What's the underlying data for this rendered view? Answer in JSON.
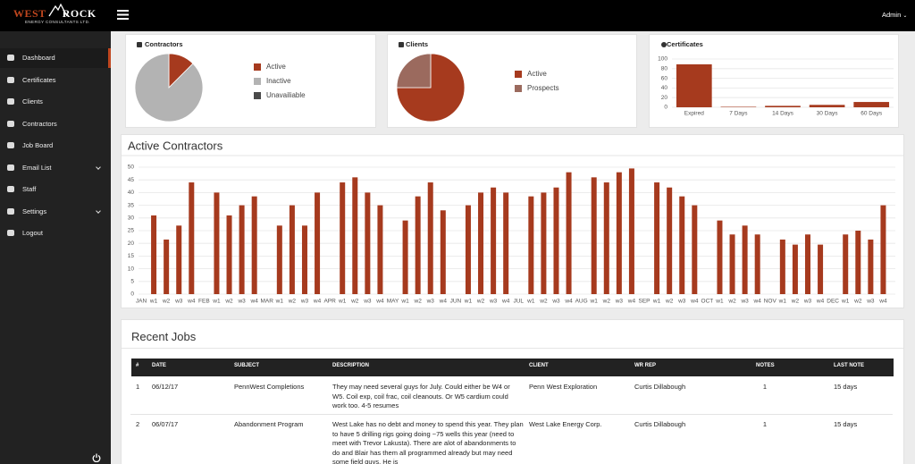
{
  "header": {
    "brand_west": "WEST",
    "brand_rock": "ROCK",
    "brand_tagline": "ENERGY CONSULTANTS LTD.",
    "user": "Admin"
  },
  "sidebar": {
    "items": [
      "Dashboard",
      "Certificates",
      "Clients",
      "Contractors",
      "Job Board",
      "Email List",
      "Staff",
      "Settings",
      "Logout"
    ]
  },
  "chart_data": [
    {
      "type": "pie",
      "title": "Contractors",
      "categories": [
        "Active",
        "Inactive",
        "Unavailiable"
      ],
      "values": [
        12.5,
        87.5,
        0
      ],
      "colors": [
        "#a63a1e",
        "#b3b3b3",
        "#4a4a4a"
      ]
    },
    {
      "type": "pie",
      "title": "Clients",
      "categories": [
        "Active",
        "Prospects"
      ],
      "values": [
        75,
        25
      ],
      "colors": [
        "#a63a1e",
        "#9b6a5e"
      ]
    },
    {
      "type": "bar",
      "title": "Certificates",
      "categories": [
        "Expired",
        "7 Days",
        "14 Days",
        "30 Days",
        "60 Days"
      ],
      "values": [
        89,
        1,
        3,
        5,
        11
      ],
      "color": "#a63a1e",
      "ylim": [
        0,
        100
      ],
      "yticks": [
        0,
        20,
        40,
        60,
        80,
        100
      ],
      "grid": true
    },
    {
      "type": "bar",
      "title": "Active Contractors",
      "categories": [
        "JAN",
        "w1",
        "w2",
        "w3",
        "w4",
        "FEB",
        "w1",
        "w2",
        "w3",
        "w4",
        "MAR",
        "w1",
        "w2",
        "w3",
        "w4",
        "APR",
        "w1",
        "w2",
        "w3",
        "w4",
        "MAY",
        "w1",
        "w2",
        "w3",
        "w4",
        "JUN",
        "w1",
        "w2",
        "w3",
        "w4",
        "JUL",
        "w1",
        "w2",
        "w3",
        "w4",
        "AUG",
        "w1",
        "w2",
        "w3",
        "w4",
        "SEP",
        "w1",
        "w2",
        "w3",
        "w4",
        "OCT",
        "w1",
        "w2",
        "w3",
        "w4",
        "NOV",
        "w1",
        "w2",
        "w3",
        "w4",
        "DEC",
        "w1",
        "w2",
        "w3",
        "w4"
      ],
      "values": [
        null,
        31,
        21.5,
        27,
        44,
        null,
        40,
        31,
        35,
        38.5,
        null,
        27,
        35,
        27,
        40,
        null,
        44,
        46,
        40,
        35,
        null,
        29,
        38.5,
        44,
        33,
        null,
        35,
        40,
        42,
        40,
        null,
        38.5,
        40,
        42,
        48,
        null,
        46,
        44,
        48,
        49.5,
        null,
        44,
        42,
        38.5,
        35,
        null,
        29,
        23.5,
        27,
        23.5,
        null,
        21.5,
        19.5,
        23.5,
        19.5,
        null,
        23.5,
        25,
        21.5,
        35
      ],
      "color": "#a63a1e",
      "ylim": [
        0,
        50
      ],
      "yticks": [
        0,
        5,
        10,
        15,
        20,
        25,
        30,
        35,
        40,
        45,
        50
      ],
      "grid": true
    }
  ],
  "recent_jobs": {
    "title": "Recent Jobs",
    "columns": [
      "#",
      "DATE",
      "SUBJECT",
      "DESCRIPTION",
      "CLIENT",
      "WR REP",
      "NOTES",
      "LAST NOTE"
    ],
    "rows": [
      [
        "1",
        "06/12/17",
        "PennWest Completions",
        "They may need several guys for July. Could either be W4 or W5. Coil exp, coil frac, coil cleanouts. Or W5 cardium could work too. 4-5 resumes",
        "Penn West Exploration",
        "Curtis Dillabough",
        "1",
        "15 days"
      ],
      [
        "2",
        "06/07/17",
        "Abandonment Program",
        "West Lake has no debt and money to spend this year. They plan to have 5 drilling rigs going doing ~75 wells this year (need to meet with Trevor Lakusta). There are alot of abandonments to do and Blair has them all programmed already but may need some field guys. He is",
        "West Lake Energy Corp.",
        "Curtis Dillabough",
        "1",
        "15 days"
      ]
    ]
  }
}
